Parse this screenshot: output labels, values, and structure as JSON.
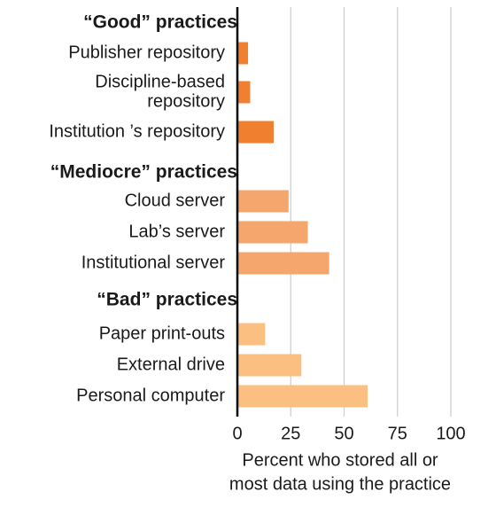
{
  "chart_data": {
    "type": "bar",
    "orientation": "horizontal",
    "groups": [
      {
        "title": "“Good” practices",
        "items": [
          {
            "label": [
              "Publisher repository"
            ],
            "value": 5,
            "color": "#f07f30"
          },
          {
            "label": [
              "Discipline-based",
              "repository"
            ],
            "value": 6,
            "color": "#f07f30"
          },
          {
            "label": [
              "Institution ’s repository"
            ],
            "value": 17,
            "color": "#f07f30"
          }
        ]
      },
      {
        "title": "“Mediocre” practices",
        "items": [
          {
            "label": [
              "Cloud server"
            ],
            "value": 24,
            "color": "#f5a66c"
          },
          {
            "label": [
              "Lab’s server"
            ],
            "value": 33,
            "color": "#f5a66c"
          },
          {
            "label": [
              "Institutional server"
            ],
            "value": 43,
            "color": "#f5a66c"
          }
        ]
      },
      {
        "title": "“Bad” practices",
        "items": [
          {
            "label": [
              "Paper print-outs"
            ],
            "value": 13,
            "color": "#fbbf82"
          },
          {
            "label": [
              "External drive"
            ],
            "value": 30,
            "color": "#fbbf82"
          },
          {
            "label": [
              "Personal computer"
            ],
            "value": 61,
            "color": "#fbbf82"
          }
        ]
      }
    ],
    "xlim": [
      0,
      100
    ],
    "xticks": [
      0,
      25,
      50,
      75,
      100
    ],
    "xtick_labels": [
      "0",
      "25",
      "50",
      "75",
      "100"
    ],
    "xlabel": [
      "Percent who stored all or",
      "most data using the practice"
    ],
    "grid": "vertical",
    "gridline_color": "#d0d0d0"
  }
}
